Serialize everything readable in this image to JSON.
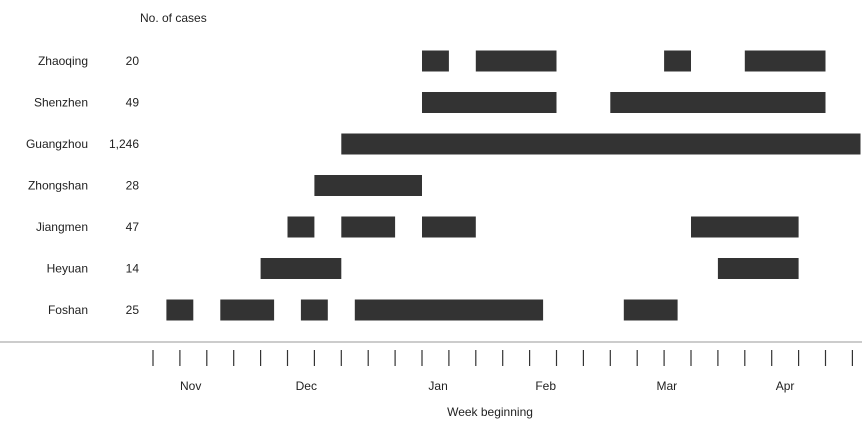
{
  "chart_data": {
    "type": "bar",
    "subtype": "timeline",
    "title": "",
    "count_header": "No. of cases",
    "xlabel": "Week beginning",
    "x_tick_labels": [
      "Nov",
      "Dec",
      "Jan",
      "Feb",
      "Mar",
      "Apr"
    ],
    "week_tick_count": 27,
    "bar_color": "#333333",
    "axis_color": "#999999",
    "grid": false,
    "legend": "none",
    "categories": [
      "Zhaoqing",
      "Shenzhen",
      "Guangzhou",
      "Zhongshan",
      "Jiangmen",
      "Heyuan",
      "Foshan"
    ],
    "cases": [
      "20",
      "49",
      "1,246",
      "28",
      "47",
      "14",
      "25"
    ],
    "series": [
      {
        "category": "Zhaoqing",
        "active_periods": [
          {
            "start_week": 10,
            "end_week": 11
          },
          {
            "start_week": 12,
            "end_week": 15
          },
          {
            "start_week": 19,
            "end_week": 20
          },
          {
            "start_week": 22,
            "end_week": 25
          }
        ]
      },
      {
        "category": "Shenzhen",
        "active_periods": [
          {
            "start_week": 10,
            "end_week": 15
          },
          {
            "start_week": 17,
            "end_week": 25
          }
        ]
      },
      {
        "category": "Guangzhou",
        "active_periods": [
          {
            "start_week": 7,
            "end_week": 26.3
          }
        ]
      },
      {
        "category": "Zhongshan",
        "active_periods": [
          {
            "start_week": 6,
            "end_week": 10
          }
        ]
      },
      {
        "category": "Jiangmen",
        "active_periods": [
          {
            "start_week": 5,
            "end_week": 6
          },
          {
            "start_week": 7,
            "end_week": 9
          },
          {
            "start_week": 10,
            "end_week": 12
          },
          {
            "start_week": 20,
            "end_week": 24
          }
        ]
      },
      {
        "category": "Heyuan",
        "active_periods": [
          {
            "start_week": 4,
            "end_week": 7
          },
          {
            "start_week": 21,
            "end_week": 24
          }
        ]
      },
      {
        "category": "Foshan",
        "active_periods": [
          {
            "start_week": 0.5,
            "end_week": 1.5
          },
          {
            "start_week": 2.5,
            "end_week": 4.5
          },
          {
            "start_week": 5.5,
            "end_week": 6.5
          },
          {
            "start_week": 7.5,
            "end_week": 14.5
          },
          {
            "start_week": 17.5,
            "end_week": 19.5
          }
        ]
      }
    ]
  }
}
